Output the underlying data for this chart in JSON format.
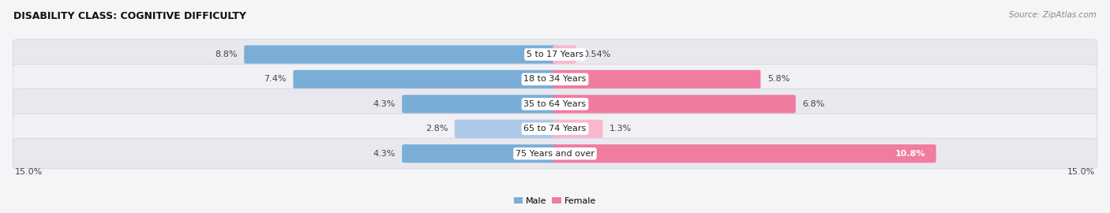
{
  "title": "DISABILITY CLASS: COGNITIVE DIFFICULTY",
  "source": "Source: ZipAtlas.com",
  "categories": [
    "5 to 17 Years",
    "18 to 34 Years",
    "35 to 64 Years",
    "65 to 74 Years",
    "75 Years and over"
  ],
  "male_values": [
    8.8,
    7.4,
    4.3,
    2.8,
    4.3
  ],
  "female_values": [
    0.54,
    5.8,
    6.8,
    1.3,
    10.8
  ],
  "male_labels": [
    "8.8%",
    "7.4%",
    "4.3%",
    "2.8%",
    "4.3%"
  ],
  "female_labels": [
    "0.54%",
    "5.8%",
    "6.8%",
    "1.3%",
    "10.8%"
  ],
  "male_color": "#7aaed6",
  "female_color": "#f07ca0",
  "male_color_light": "#adc8e8",
  "female_color_light": "#f7b8cc",
  "row_bg_color": "#ebebf0",
  "row_bg_color2": "#f5f5f8",
  "max_val": 15.0,
  "x_left_label": "15.0%",
  "x_right_label": "15.0%",
  "legend_male": "Male",
  "legend_female": "Female",
  "title_fontsize": 9,
  "source_fontsize": 7.5,
  "label_fontsize": 8,
  "cat_fontsize": 8,
  "bg_color": "#f5f5f8",
  "label_colors_female_inside": [
    false,
    false,
    false,
    false,
    true
  ]
}
